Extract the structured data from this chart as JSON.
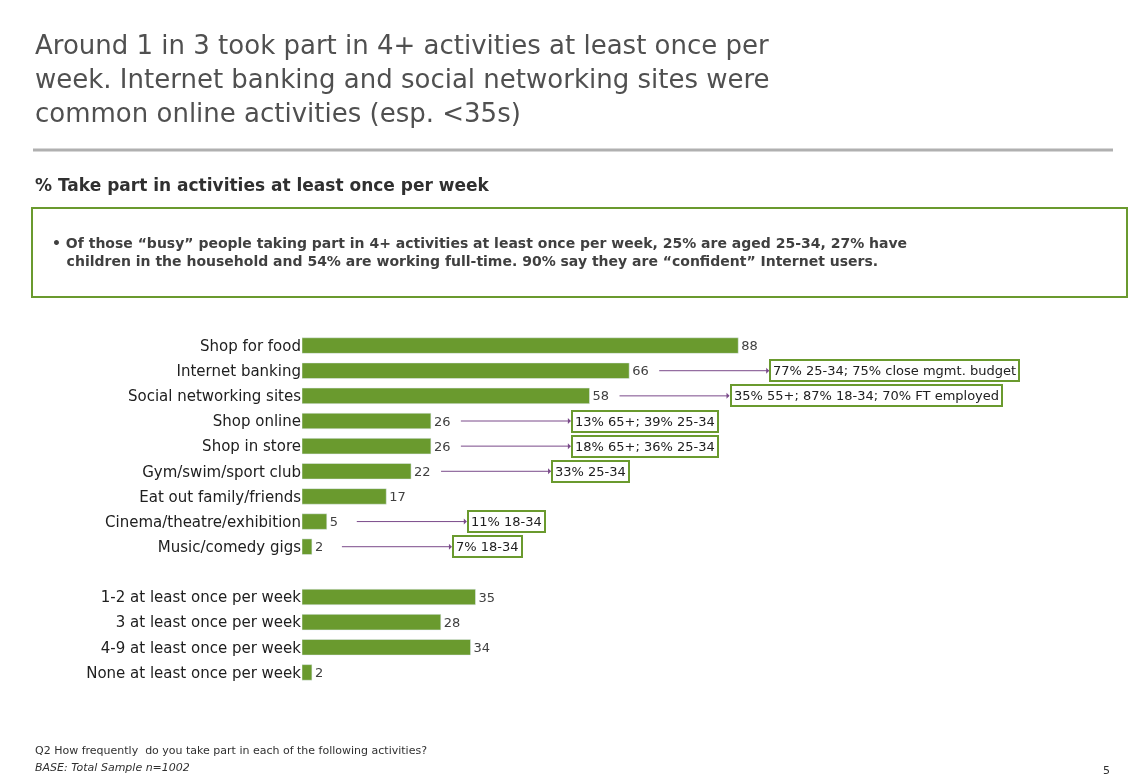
{
  "chart_data": {
    "type": "bar",
    "orientation": "horizontal",
    "title": "Around 1 in 3 took part in 4+ activities at least once per week. Internet banking and social networking sites were common online activities (esp. <35s)",
    "subtitle": "% Take part in activities at least once per week",
    "categories": [
      "Shop for food",
      "Internet banking",
      "Social networking sites",
      "Shop online",
      "Shop in store",
      "Gym/swim/sport club",
      "Eat out family/friends",
      "Cinema/theatre/exhibition",
      "Music/comedy gigs",
      null,
      "1-2 at least once per week",
      "3 at least once per week",
      "4-9 at least once per week",
      "None at least once per week"
    ],
    "values": [
      88,
      66,
      58,
      26,
      26,
      22,
      17,
      5,
      2,
      null,
      35,
      28,
      34,
      2
    ],
    "color": "#6a9a2e",
    "data_labels": true,
    "annotations": [
      "• Of those “busy” people taking part in 4+ activities at least once per week, 25% are aged 25-34, 27% have children in the household and 54% are working full-time. 90% say they are “confident” Internet users.",
      {
        "text": "77% 25-34; 75% close mgmt. budget",
        "x": 66,
        "y": "Internet banking"
      },
      {
        "text": "35% 55+; 87% 18-34; 70% FT employed",
        "x": 58,
        "y": "Social networking sites"
      },
      {
        "text": "13% 65+; 39% 25-34",
        "x": 26,
        "y": "Shop online"
      },
      {
        "text": "18% 65+; 36% 25-34",
        "x": 26,
        "y": "Shop in store"
      },
      {
        "text": "33% 25-34",
        "x": 22,
        "y": "Gym/swim/sport club"
      },
      {
        "text": "11% 18-34",
        "x": 5,
        "y": "Cinema/theatre/exhibition"
      },
      {
        "text": "7% 18-34",
        "x": 2,
        "y": "Music/comedy gigs"
      },
      "Q2 How frequently  do you take part in each of the following activities?",
      "BASE: Total Sample n=1002",
      "5"
    ]
  }
}
